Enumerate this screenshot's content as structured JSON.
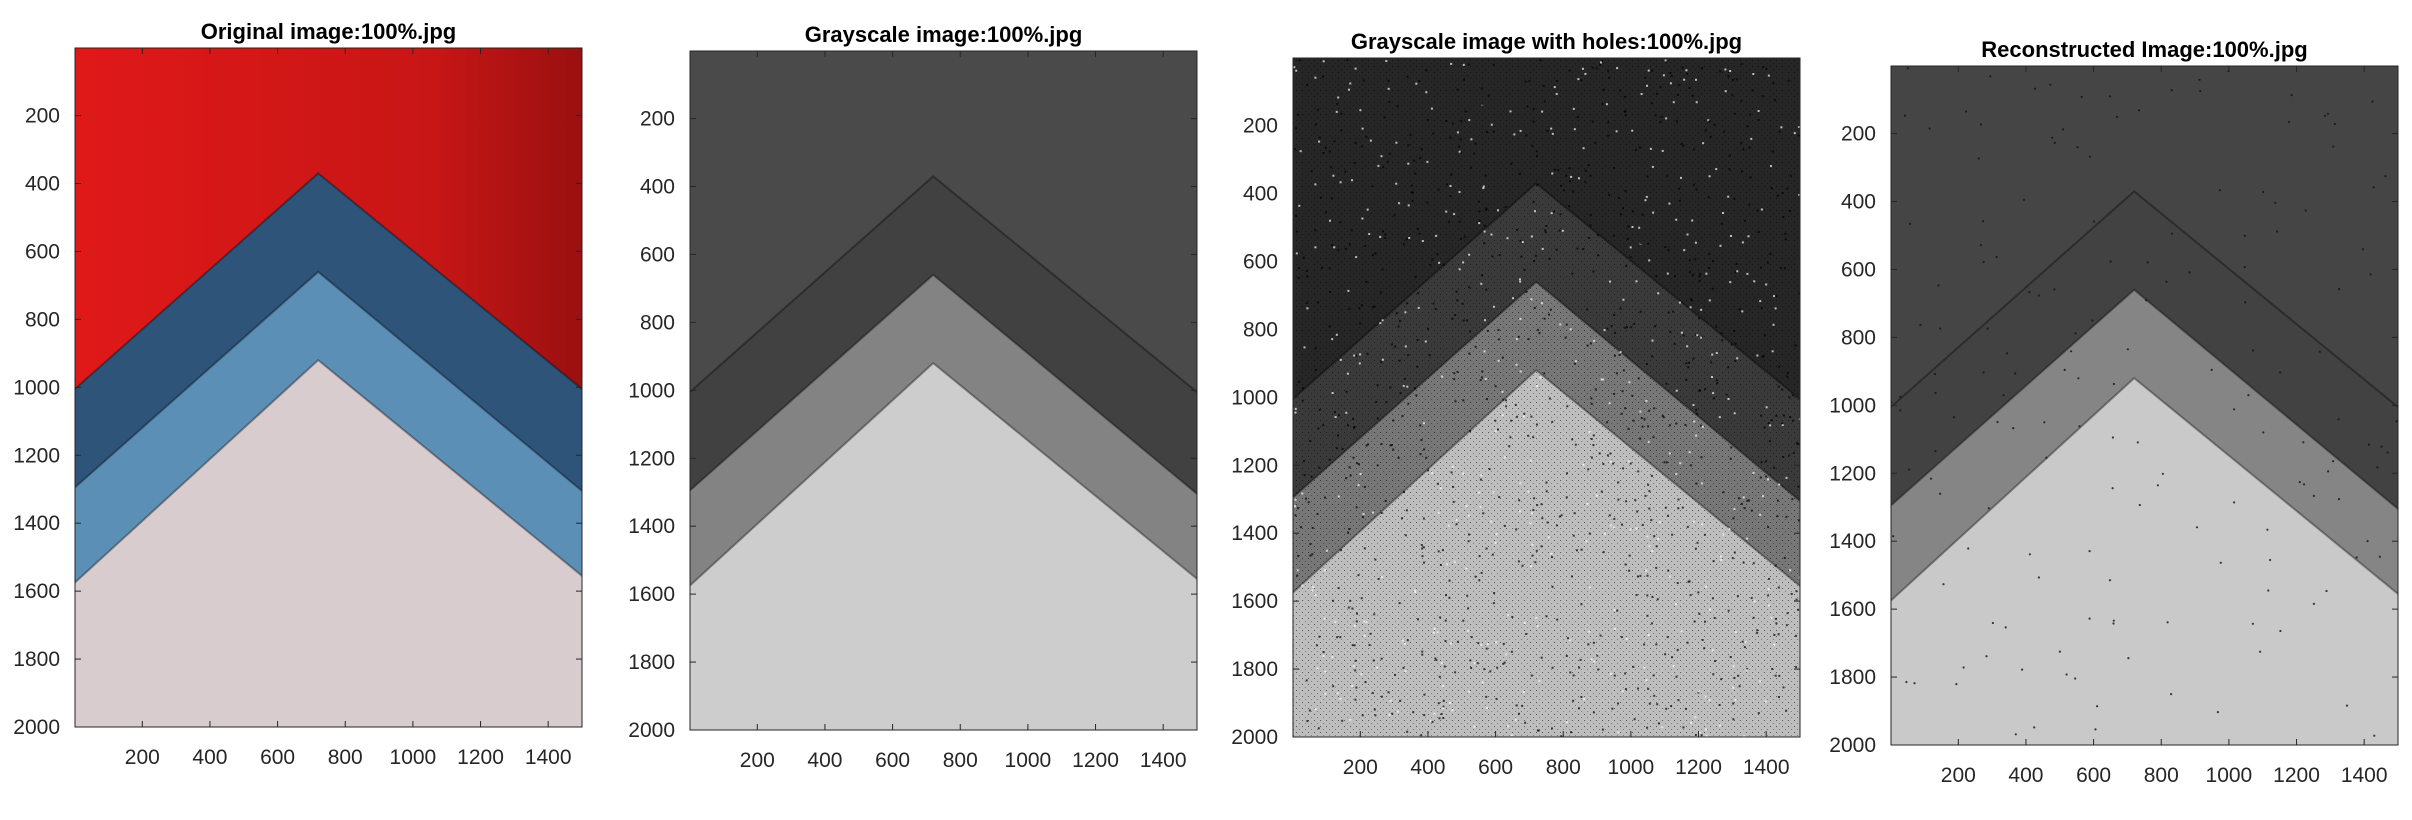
{
  "figure": {
    "panels": [
      {
        "id": "original",
        "title": "Original image:100%.jpg",
        "style": "color",
        "colors": {
          "background": "#d81c1c",
          "band_dark": "#2f5479",
          "band_light": "#5b8fb5",
          "base": "#d8cccf"
        }
      },
      {
        "id": "grayscale",
        "title": "Grayscale image:100%.jpg",
        "style": "gray",
        "colors": {
          "background": "#4a4a4a",
          "band_dark": "#414141",
          "band_light": "#838383",
          "base": "#cdcdcd"
        }
      },
      {
        "id": "holes",
        "title": "Grayscale image with holes:100%.jpg",
        "style": "holes",
        "colors": {
          "background": "#262626",
          "band_dark": "#3a3a3a",
          "band_light": "#777777",
          "base": "#bdbdbd"
        }
      },
      {
        "id": "reconstructed",
        "title": "Reconstructed Image:100%.jpg",
        "style": "reconstructed",
        "colors": {
          "background": "#454545",
          "band_dark": "#424242",
          "band_light": "#858585",
          "base": "#c9c9c9"
        }
      }
    ]
  },
  "chart_data": {
    "type": "image",
    "xlim": [
      1,
      1500
    ],
    "ylim": [
      1,
      2000
    ],
    "y_direction": "reversed",
    "x_ticks": [
      200,
      400,
      600,
      800,
      1000,
      1200,
      1400
    ],
    "y_ticks": [
      200,
      400,
      600,
      800,
      1000,
      1200,
      1400,
      1600,
      1800,
      2000
    ],
    "shapes": {
      "apex_x": 720,
      "chevron_1_apex_y": 370,
      "chevron_1_left_y": 1010,
      "chevron_1_right_y": 1010,
      "chevron_2_apex_y": 660,
      "chevron_2_left_y": 1300,
      "chevron_2_right_y": 1310,
      "chevron_3_apex_y": 920,
      "chevron_3_left_y": 1580,
      "chevron_3_right_y": 1560
    }
  }
}
